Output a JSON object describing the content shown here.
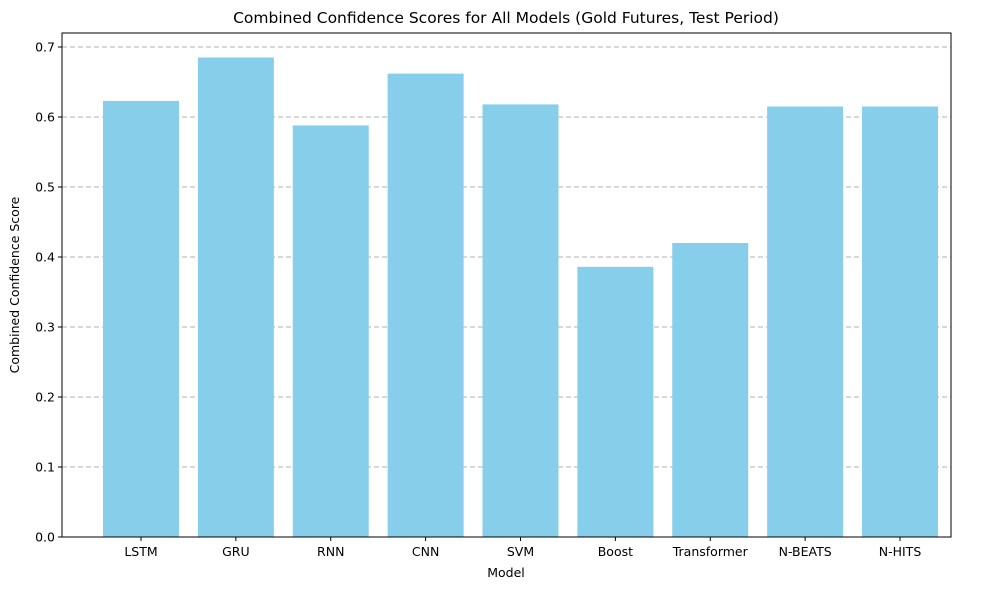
{
  "chart_data": {
    "type": "bar",
    "title": "Combined Confidence Scores for All Models (Gold Futures, Test Period)",
    "xlabel": "Model",
    "ylabel": "Combined Confidence Score",
    "categories": [
      "LSTM",
      "GRU",
      "RNN",
      "CNN",
      "SVM",
      "Boost",
      "Transformer",
      "N-BEATS",
      "N-HITS"
    ],
    "values": [
      0.623,
      0.685,
      0.588,
      0.662,
      0.618,
      0.386,
      0.42,
      0.615,
      0.615
    ],
    "ylim": [
      0,
      0.72
    ],
    "yticks": [
      0.0,
      0.1,
      0.2,
      0.3,
      0.4,
      0.5,
      0.6,
      0.7
    ],
    "ytick_labels": [
      "0.0",
      "0.1",
      "0.2",
      "0.3",
      "0.4",
      "0.5",
      "0.6",
      "0.7"
    ],
    "grid": "y-axis dashed",
    "bar_color": "#87CEEB"
  }
}
